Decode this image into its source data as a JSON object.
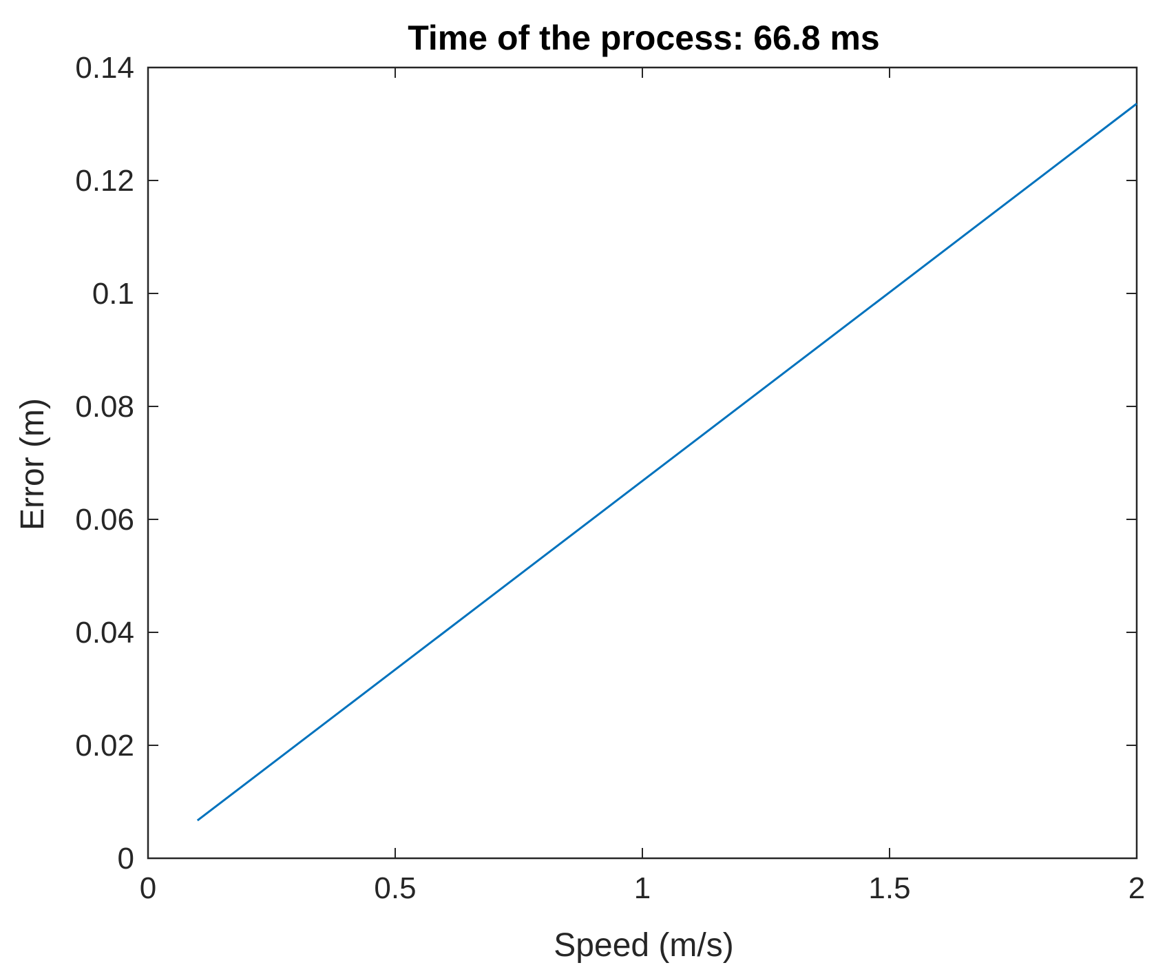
{
  "chart_data": {
    "type": "line",
    "title": "Time of the process: 66.8 ms",
    "xlabel": "Speed (m/s)",
    "ylabel": "Error (m)",
    "xlim": [
      0,
      2
    ],
    "ylim": [
      0,
      0.14
    ],
    "xticks": [
      0,
      0.5,
      1,
      1.5,
      2
    ],
    "xtick_labels": [
      "0",
      "0.5",
      "1",
      "1.5",
      "2"
    ],
    "yticks": [
      0,
      0.02,
      0.04,
      0.06,
      0.08,
      0.1,
      0.12,
      0.14
    ],
    "ytick_labels": [
      "0",
      "0.02",
      "0.04",
      "0.06",
      "0.08",
      "0.1",
      "0.12",
      "0.14"
    ],
    "grid": false,
    "box": true,
    "series": [
      {
        "color": "#0072BD",
        "x": [
          0.1,
          0.5,
          1.0,
          1.5,
          2.0
        ],
        "y": [
          0.0067,
          0.0334,
          0.0668,
          0.1002,
          0.1336
        ]
      }
    ]
  }
}
